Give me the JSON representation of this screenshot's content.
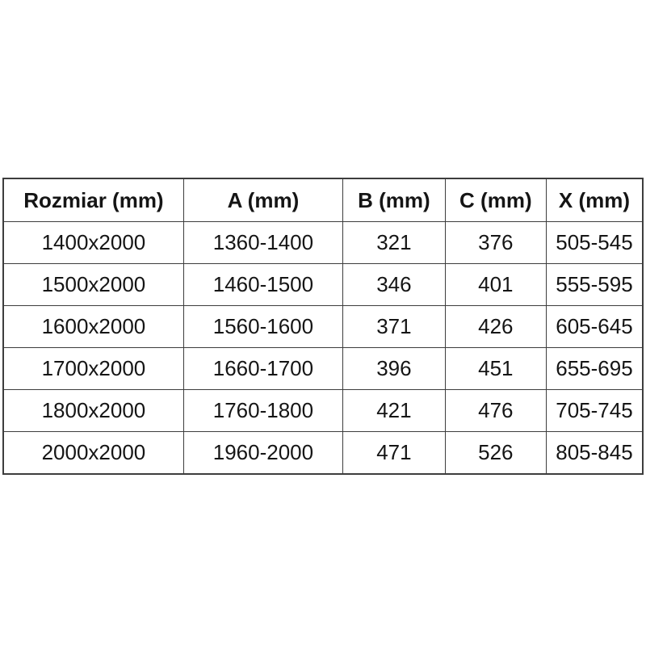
{
  "table": {
    "headers": [
      "Rozmiar (mm)",
      "A (mm)",
      "B (mm)",
      "C (mm)",
      "X (mm)"
    ],
    "rows": [
      [
        "1400x2000",
        "1360-1400",
        "321",
        "376",
        "505-545"
      ],
      [
        "1500x2000",
        "1460-1500",
        "346",
        "401",
        "555-595"
      ],
      [
        "1600x2000",
        "1560-1600",
        "371",
        "426",
        "605-645"
      ],
      [
        "1700x2000",
        "1660-1700",
        "396",
        "451",
        "655-695"
      ],
      [
        "1800x2000",
        "1760-1800",
        "421",
        "476",
        "705-745"
      ],
      [
        "2000x2000",
        "1960-2000",
        "471",
        "526",
        "805-845"
      ]
    ]
  },
  "colors": {
    "grid_line": "#3d3d3d",
    "text": "#151515",
    "background": "#ffffff"
  },
  "chart_data": {
    "type": "table",
    "title": "",
    "columns": [
      "Rozmiar (mm)",
      "A (mm)",
      "B (mm)",
      "C (mm)",
      "X (mm)"
    ],
    "rows": [
      [
        "1400x2000",
        "1360-1400",
        "321",
        "376",
        "505-545"
      ],
      [
        "1500x2000",
        "1460-1500",
        "346",
        "401",
        "555-595"
      ],
      [
        "1600x2000",
        "1560-1600",
        "371",
        "426",
        "605-645"
      ],
      [
        "1700x2000",
        "1660-1700",
        "396",
        "451",
        "655-695"
      ],
      [
        "1800x2000",
        "1760-1800",
        "421",
        "476",
        "705-745"
      ],
      [
        "2000x2000",
        "1960-2000",
        "471",
        "526",
        "805-845"
      ]
    ]
  }
}
